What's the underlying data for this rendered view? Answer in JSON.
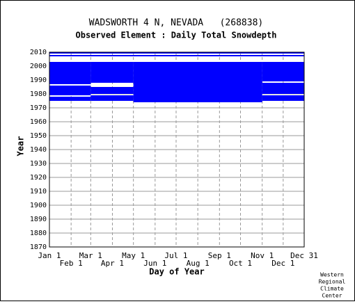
{
  "chart_data": {
    "type": "coverage",
    "title": "WADSWORTH 4 N, NEVADA   (268838)",
    "subtitle": "Observed Element : Daily Total Snowdepth",
    "xlabel": "Day of Year",
    "ylabel": "Year",
    "credit": [
      "Western",
      "Regional",
      "Climate",
      "Center"
    ],
    "color": "#0000ff",
    "xlim": [
      1,
      365
    ],
    "ylim": [
      1870,
      2010
    ],
    "xticks": [
      {
        "value": 1,
        "label": "Jan 1"
      },
      {
        "value": 32,
        "label": "Feb 1"
      },
      {
        "value": 60,
        "label": "Mar 1"
      },
      {
        "value": 91,
        "label": "Apr 1"
      },
      {
        "value": 121,
        "label": "May 1"
      },
      {
        "value": 152,
        "label": "Jun 1"
      },
      {
        "value": 182,
        "label": "Jul 1"
      },
      {
        "value": 213,
        "label": "Aug 1"
      },
      {
        "value": 244,
        "label": "Sep 1"
      },
      {
        "value": 274,
        "label": "Oct 1"
      },
      {
        "value": 305,
        "label": "Nov 1"
      },
      {
        "value": 335,
        "label": "Dec 1"
      },
      {
        "value": 365,
        "label": "Dec 31"
      }
    ],
    "yticks": [
      1870,
      1880,
      1890,
      1900,
      1910,
      1920,
      1930,
      1940,
      1950,
      1960,
      1970,
      1980,
      1990,
      2000,
      2010
    ],
    "grid": true,
    "segments": [
      {
        "years": [
          2009,
          2009
        ],
        "days": [
          1,
          365
        ]
      },
      {
        "years": [
          2009,
          2010
        ],
        "days": [
          121,
          305
        ]
      },
      {
        "years": [
          2007,
          2007
        ],
        "days": [
          1,
          365
        ]
      },
      {
        "years": [
          1987,
          2002
        ],
        "days": [
          1,
          60
        ]
      },
      {
        "years": [
          1979,
          1985
        ],
        "days": [
          1,
          60
        ]
      },
      {
        "years": [
          1975,
          1977
        ],
        "days": [
          1,
          60
        ]
      },
      {
        "years": [
          1988,
          2002
        ],
        "days": [
          60,
          121
        ]
      },
      {
        "years": [
          1980,
          1984
        ],
        "days": [
          60,
          121
        ]
      },
      {
        "years": [
          1975,
          1978
        ],
        "days": [
          60,
          121
        ]
      },
      {
        "years": [
          1974,
          2002
        ],
        "days": [
          121,
          305
        ]
      },
      {
        "years": [
          1989,
          2002
        ],
        "days": [
          305,
          365
        ]
      },
      {
        "years": [
          1980,
          1987
        ],
        "days": [
          305,
          365
        ]
      },
      {
        "years": [
          1975,
          1978
        ],
        "days": [
          305,
          365
        ]
      }
    ]
  }
}
